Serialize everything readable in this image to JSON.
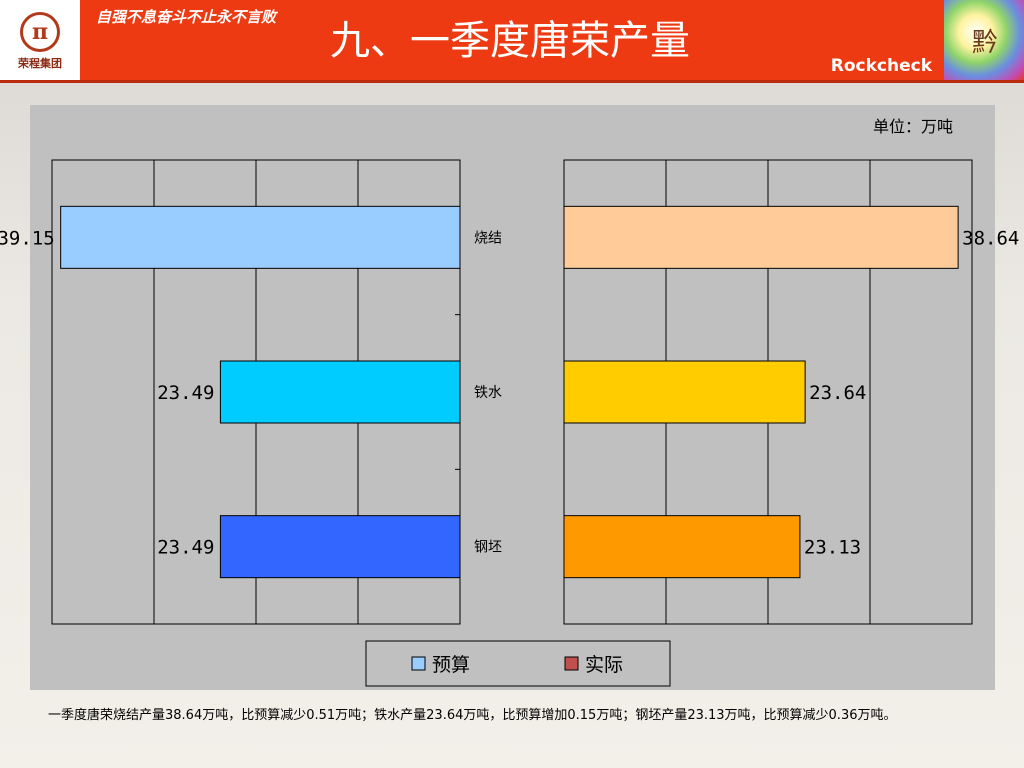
{
  "header": {
    "logo_text": "荣程集团",
    "logo_mark": "π",
    "slogan": "自强不息奋斗不止永不言败",
    "title": "九、一季度唐荣产量",
    "brand": "Rockcheck",
    "corner_glyph": "黔"
  },
  "colors": {
    "header_red": "#ee3a12",
    "budget_sinter": "#99ccff",
    "budget_iron": "#00ccff",
    "budget_billet": "#3366ff",
    "actual_sinter": "#ffcc99",
    "actual_iron": "#ffcc00",
    "actual_billet": "#ff9900"
  },
  "chart_data": {
    "type": "bar",
    "orientation": "horizontal-butterfly",
    "unit": "单位：万吨",
    "categories": [
      "烧结",
      "铁水",
      "钢坯"
    ],
    "series": [
      {
        "name": "预算",
        "values": [
          39.15,
          23.49,
          23.49
        ],
        "value_labels": [
          "39.15",
          "23.49",
          "23.49"
        ]
      },
      {
        "name": "实际",
        "values": [
          38.64,
          23.64,
          23.13
        ],
        "value_labels": [
          "38.64",
          "23.64",
          "23.13"
        ]
      }
    ],
    "xlim": [
      0,
      40
    ],
    "grid": true,
    "legend_position": "bottom-center",
    "legend": [
      {
        "label": "预算",
        "color": "#99ccff"
      },
      {
        "label": "实际",
        "color": "#c0504d"
      }
    ]
  },
  "note": "一季度唐荣烧结产量38.64万吨，比预算减少0.51万吨；铁水产量23.64万吨，比预算增加0.15万吨；钢坯产量23.13万吨，比预算减少0.36万吨。"
}
